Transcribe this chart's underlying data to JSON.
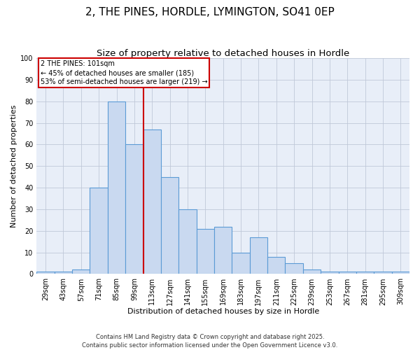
{
  "title_line1": "2, THE PINES, HORDLE, LYMINGTON, SO41 0EP",
  "title_line2": "Size of property relative to detached houses in Hordle",
  "xlabel": "Distribution of detached houses by size in Hordle",
  "ylabel": "Number of detached properties",
  "categories": [
    "29sqm",
    "43sqm",
    "57sqm",
    "71sqm",
    "85sqm",
    "99sqm",
    "113sqm",
    "127sqm",
    "141sqm",
    "155sqm",
    "169sqm",
    "183sqm",
    "197sqm",
    "211sqm",
    "225sqm",
    "239sqm",
    "253sqm",
    "267sqm",
    "281sqm",
    "295sqm",
    "309sqm"
  ],
  "values": [
    1,
    1,
    2,
    40,
    80,
    60,
    67,
    45,
    30,
    21,
    22,
    10,
    17,
    8,
    5,
    2,
    1,
    1,
    1,
    1,
    1
  ],
  "bar_color": "#c9d9f0",
  "bar_edge_color": "#5b9bd5",
  "vline_x": 5.5,
  "vline_color": "#cc0000",
  "annotation_text": "2 THE PINES: 101sqm\n← 45% of detached houses are smaller (185)\n53% of semi-detached houses are larger (219) →",
  "annotation_box_color": "#cc0000",
  "ylim": [
    0,
    100
  ],
  "yticks": [
    0,
    10,
    20,
    30,
    40,
    50,
    60,
    70,
    80,
    90,
    100
  ],
  "grid_color": "#c0c8d8",
  "background_color": "#e8eef8",
  "footer_line1": "Contains HM Land Registry data © Crown copyright and database right 2025.",
  "footer_line2": "Contains public sector information licensed under the Open Government Licence v3.0.",
  "title_fontsize": 11,
  "subtitle_fontsize": 9.5,
  "tick_fontsize": 7,
  "label_fontsize": 8,
  "footer_fontsize": 6
}
